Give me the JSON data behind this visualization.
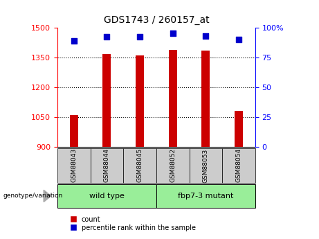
{
  "title": "GDS1743 / 260157_at",
  "categories": [
    "GSM88043",
    "GSM88044",
    "GSM88045",
    "GSM88052",
    "GSM88053",
    "GSM88054"
  ],
  "count_values": [
    1062,
    1365,
    1358,
    1388,
    1385,
    1082
  ],
  "percentile_values": [
    89,
    92,
    92,
    95,
    93,
    90
  ],
  "ylim_left": [
    900,
    1500
  ],
  "ylim_right": [
    0,
    100
  ],
  "left_ticks": [
    900,
    1050,
    1200,
    1350,
    1500
  ],
  "right_ticks": [
    0,
    25,
    50,
    75,
    100
  ],
  "grid_lines": [
    1050,
    1200,
    1350
  ],
  "bar_color": "#cc0000",
  "dot_color": "#0000cc",
  "group1_label": "wild type",
  "group2_label": "fbp7-3 mutant",
  "group1_indices": [
    0,
    1,
    2
  ],
  "group2_indices": [
    3,
    4,
    5
  ],
  "group_label_prefix": "genotype/variation",
  "legend_count_label": "count",
  "legend_percentile_label": "percentile rank within the sample",
  "group_bg_color": "#99ee99",
  "tick_bg_color": "#cccccc",
  "bar_width": 0.25,
  "dot_size": 28
}
